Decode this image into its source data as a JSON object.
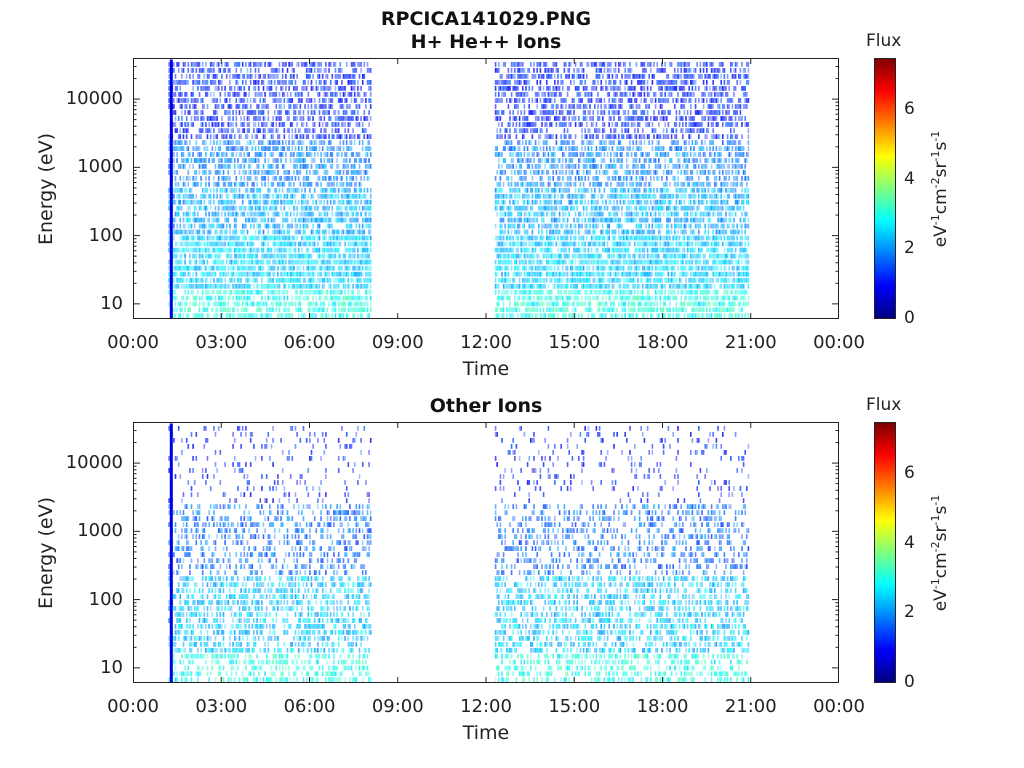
{
  "page_title": "RPCICA141029.PNG",
  "colorbar": {
    "title": "Flux",
    "ticks": [
      "0",
      "2",
      "4",
      "6"
    ],
    "tick_values": [
      0,
      2,
      4,
      6
    ],
    "range": [
      0,
      7.5
    ],
    "colormap": "jet",
    "units_parts": [
      "eV",
      "-1",
      "cm",
      "-2",
      "sr",
      "-1",
      "s",
      "-1"
    ]
  },
  "chart_data": [
    {
      "type": "heatmap",
      "title": "H+ He++ Ions",
      "xlabel": "Time",
      "ylabel": "Energy (eV)",
      "x_ticks": [
        "00:00",
        "03:00",
        "06:00",
        "09:00",
        "12:00",
        "15:00",
        "18:00",
        "21:00",
        "00:00"
      ],
      "x_tick_hours": [
        0,
        3,
        6,
        9,
        12,
        15,
        18,
        21,
        24
      ],
      "xlim_hours": [
        0,
        24
      ],
      "y_scale": "log",
      "y_ticks": [
        "10",
        "100",
        "1000",
        "10000"
      ],
      "y_tick_values": [
        10,
        100,
        1000,
        10000
      ],
      "ylim": [
        6,
        40000
      ],
      "data_intervals_hours": [
        [
          1.2,
          8.1
        ],
        [
          12.3,
          20.9
        ]
      ],
      "spike_hour": 1.25,
      "bands": [
        {
          "emin": 6,
          "emax": 16,
          "flux": 3.0,
          "density": 0.7
        },
        {
          "emin": 16,
          "emax": 100,
          "flux": 2.5,
          "density": 0.85
        },
        {
          "emin": 100,
          "emax": 500,
          "flux": 2.2,
          "density": 0.7
        },
        {
          "emin": 500,
          "emax": 2500,
          "flux": 1.9,
          "density": 0.6
        },
        {
          "emin": 2500,
          "emax": 35000,
          "flux": 1.2,
          "density": 0.55
        }
      ]
    },
    {
      "type": "heatmap",
      "title": "Other Ions",
      "xlabel": "Time",
      "ylabel": "Energy (eV)",
      "x_ticks": [
        "00:00",
        "03:00",
        "06:00",
        "09:00",
        "12:00",
        "15:00",
        "18:00",
        "21:00",
        "00:00"
      ],
      "x_tick_hours": [
        0,
        3,
        6,
        9,
        12,
        15,
        18,
        21,
        24
      ],
      "xlim_hours": [
        0,
        24
      ],
      "y_scale": "log",
      "y_ticks": [
        "10",
        "100",
        "1000",
        "10000"
      ],
      "y_tick_values": [
        10,
        100,
        1000,
        10000
      ],
      "ylim": [
        6,
        40000
      ],
      "data_intervals_hours": [
        [
          1.2,
          8.1
        ],
        [
          12.3,
          20.9
        ]
      ],
      "spike_hour": 1.25,
      "bands": [
        {
          "emin": 6,
          "emax": 16,
          "flux": 3.0,
          "density": 0.45
        },
        {
          "emin": 16,
          "emax": 220,
          "flux": 2.4,
          "density": 0.5
        },
        {
          "emin": 220,
          "emax": 2500,
          "flux": 1.7,
          "density": 0.35
        },
        {
          "emin": 2500,
          "emax": 35000,
          "flux": 1.1,
          "density": 0.12
        }
      ]
    }
  ]
}
